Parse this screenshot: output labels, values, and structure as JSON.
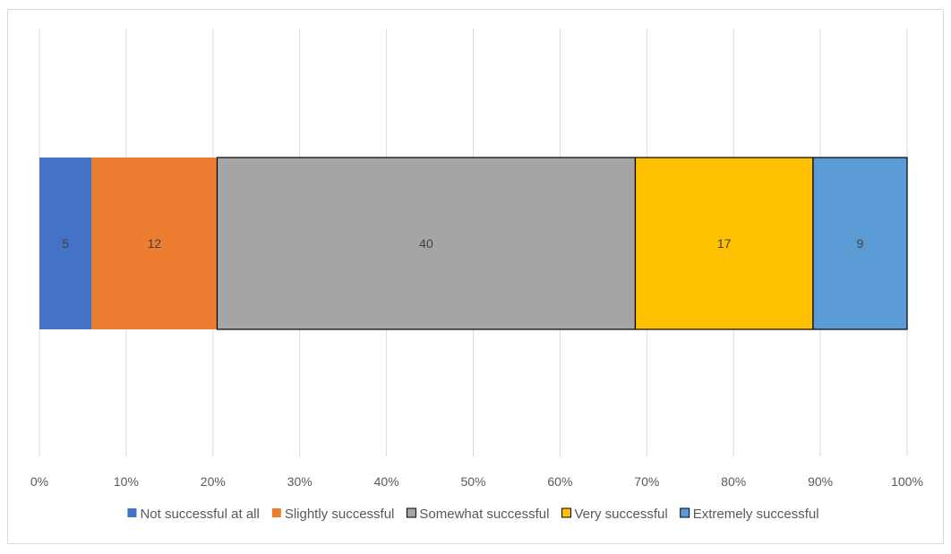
{
  "chart_data": {
    "type": "bar",
    "orientation": "horizontal",
    "stacking": "percent",
    "categories": [
      ""
    ],
    "series": [
      {
        "name": "Not successful at all",
        "values": [
          5
        ],
        "color": "#4472C4"
      },
      {
        "name": "Slightly successful",
        "values": [
          12
        ],
        "color": "#ED7D31"
      },
      {
        "name": "Somewhat successful",
        "values": [
          40
        ],
        "color": "#A5A5A5"
      },
      {
        "name": "Very successful",
        "values": [
          17
        ],
        "color": "#FFC000"
      },
      {
        "name": "Extremely successful",
        "values": [
          9
        ],
        "color": "#5B9BD5"
      }
    ],
    "xlim": [
      0,
      100
    ],
    "x_ticks": [
      "0%",
      "10%",
      "20%",
      "30%",
      "40%",
      "50%",
      "60%",
      "70%",
      "80%",
      "90%",
      "100%"
    ],
    "data_labels": true,
    "grid": "vertical",
    "legend_position": "bottom",
    "gridline_color": "#d9d9d9",
    "text_color": "#595959"
  }
}
